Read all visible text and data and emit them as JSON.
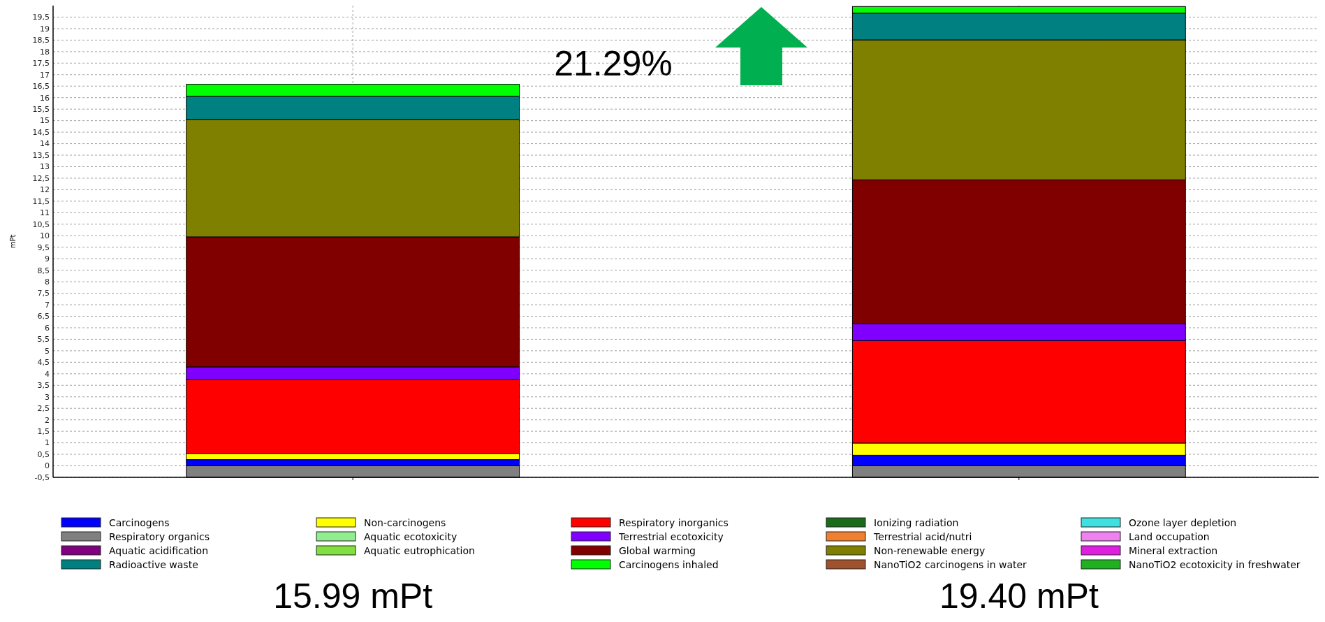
{
  "chart_data": {
    "type": "bar",
    "stacked": true,
    "categories": [
      null,
      null
    ],
    "ylabel": "mPt",
    "ylim": [
      -0.5,
      20
    ],
    "yticks": [
      {
        "value": -0.5,
        "label": "-0,5"
      },
      0,
      {
        "value": 0.5,
        "label": "0,5"
      },
      1,
      {
        "value": 1.5,
        "label": "1,5"
      },
      2,
      {
        "value": 2.5,
        "label": "2,5"
      },
      3,
      {
        "value": 3.5,
        "label": "3,5"
      },
      4,
      {
        "value": 4.5,
        "label": "4,5"
      },
      5,
      {
        "value": 5.5,
        "label": "5,5"
      },
      6,
      {
        "value": 6.5,
        "label": "6,5"
      },
      7,
      {
        "value": 7.5,
        "label": "7,5"
      },
      8,
      {
        "value": 8.5,
        "label": "8,5"
      },
      9,
      {
        "value": 9.5,
        "label": "9,5"
      },
      10,
      {
        "value": 10.5,
        "label": "10,5"
      },
      11,
      {
        "value": 11.5,
        "label": "11,5"
      },
      12,
      {
        "value": 12.5,
        "label": "12,5"
      },
      13,
      {
        "value": 13.5,
        "label": "13,5"
      },
      14,
      {
        "value": 14.5,
        "label": "14,5"
      },
      15,
      {
        "value": 15.5,
        "label": "15,5"
      },
      16,
      {
        "value": 16.5,
        "label": "16,5"
      },
      17,
      {
        "value": 17.5,
        "label": "17,5"
      },
      18,
      {
        "value": 18.5,
        "label": "18,5"
      },
      19,
      {
        "value": 19.5,
        "label": "19,5"
      }
    ],
    "grid": true,
    "legend": "bottom",
    "series": [
      {
        "name": "Carcinogens",
        "color": "#0000ff",
        "values": [
          0.27,
          0.46
        ]
      },
      {
        "name": "Non-carcinogens",
        "color": "#ffff00",
        "values": [
          0.27,
          0.53
        ]
      },
      {
        "name": "Respiratory inorganics",
        "color": "#ff0000",
        "values": [
          3.21,
          4.45
        ]
      },
      {
        "name": "Ionizing radiation",
        "color": "#1a6b1a",
        "values": [
          null,
          null
        ]
      },
      {
        "name": "Ozone layer depletion",
        "color": "#40e0e0",
        "values": [
          null,
          null
        ]
      },
      {
        "name": "Respiratory organics",
        "color": "#808080",
        "values": [
          -0.5,
          -0.5
        ]
      },
      {
        "name": "Aquatic ecotoxicity",
        "color": "#90ee90",
        "values": [
          null,
          null
        ]
      },
      {
        "name": "Terrestrial ecotoxicity",
        "color": "#8000ff",
        "values": [
          0.55,
          0.73
        ]
      },
      {
        "name": "Terrestrial acid/nutri",
        "color": "#f08030",
        "values": [
          null,
          null
        ]
      },
      {
        "name": "Land occupation",
        "color": "#ee82ee",
        "values": [
          null,
          null
        ]
      },
      {
        "name": "Aquatic acidification",
        "color": "#800080",
        "values": [
          null,
          null
        ]
      },
      {
        "name": "Aquatic eutrophication",
        "color": "#80e040",
        "values": [
          null,
          null
        ]
      },
      {
        "name": "Global warming",
        "color": "#800000",
        "values": [
          5.65,
          6.26
        ]
      },
      {
        "name": "Non-renewable energy",
        "color": "#808000",
        "values": [
          5.1,
          6.08
        ]
      },
      {
        "name": "Mineral extraction",
        "color": "#e020e0",
        "values": [
          null,
          null
        ]
      },
      {
        "name": "Radioactive waste",
        "color": "#008080",
        "values": [
          1.01,
          1.16
        ]
      },
      {
        "name": "Carcinogens  inhaled",
        "color": "#00ff00",
        "values": [
          0.52,
          0.29
        ]
      },
      {
        "name": "NanoTiO2 carcinogens in water",
        "color": "#a0522d",
        "values": [
          null,
          null
        ]
      },
      {
        "name": "NanoTiO2 ecotoxicity in freshwater",
        "color": "#20b020",
        "values": [
          null,
          null
        ]
      }
    ],
    "annotations": [
      "21.29%",
      "15.99 mPt",
      "19.40 mPt"
    ]
  }
}
